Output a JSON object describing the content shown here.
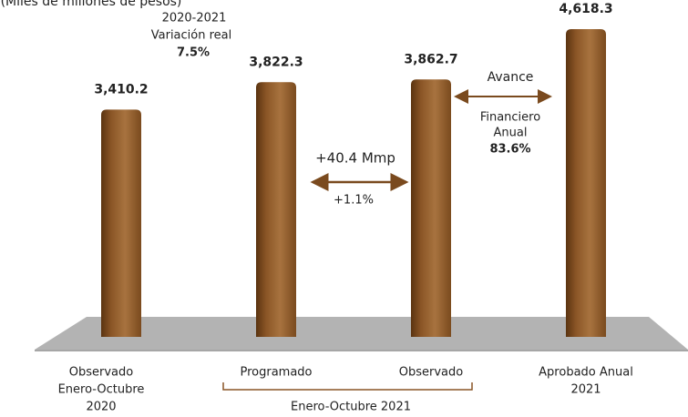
{
  "chart_data": {
    "type": "bar",
    "subtitle": "(Miles de millones de pesos)",
    "categories": [
      [
        "Observado",
        "Enero-Octubre",
        "2020"
      ],
      [
        "Programado"
      ],
      [
        "Observado"
      ],
      [
        "Aprobado Anual",
        "2021"
      ]
    ],
    "group_label": "Enero-Octubre 2021",
    "values": [
      3410.2,
      3822.3,
      3862.7,
      4618.3
    ],
    "value_labels": [
      "3,410.2",
      "3,822.3",
      "3,862.7",
      "4,618.3"
    ],
    "color": "#9a6535",
    "annotations": {
      "real_change": [
        "2020-2021",
        "Variación real",
        "7.5%"
      ],
      "difference": [
        "+40.4 Mmp",
        "+1.1%"
      ],
      "progress": [
        "Avance",
        "Financiero",
        "Anual",
        "83.6%"
      ]
    }
  }
}
